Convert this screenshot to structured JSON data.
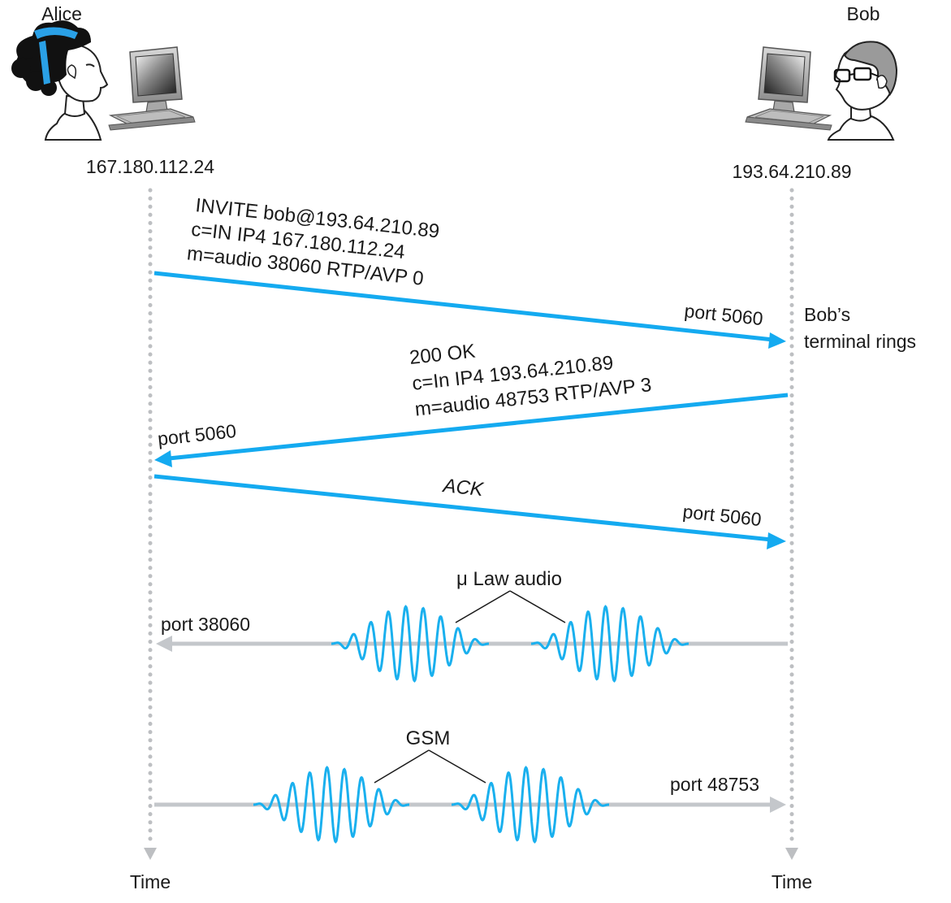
{
  "actors": {
    "alice": {
      "name": "Alice",
      "ip": "167.180.112.24"
    },
    "bob": {
      "name": "Bob",
      "ip": "193.64.210.89"
    }
  },
  "timeline": {
    "alice_label": "Time",
    "bob_label": "Time"
  },
  "messages": {
    "invite": {
      "lines": [
        "INVITE bob@193.64.210.89",
        "c=IN IP4 167.180.112.24",
        "m=audio 38060 RTP/AVP 0"
      ],
      "port": "port 5060"
    },
    "ringing_note": [
      "Bob’s",
      "terminal rings"
    ],
    "ok": {
      "lines": [
        "200 OK",
        "c=In IP4 193.64.210.89",
        "m=audio 48753 RTP/AVP 3"
      ],
      "port": "port 5060"
    },
    "ack": {
      "label": "ACK",
      "port": "port 5060"
    }
  },
  "streams": {
    "to_alice": {
      "label": "μ Law audio",
      "port": "port 38060"
    },
    "to_bob": {
      "label": "GSM",
      "port": "port 48753"
    }
  },
  "colors": {
    "signal_arrow": "#14aaf0",
    "media_line": "#c4c7cb",
    "waveform": "#1ab0ee",
    "timeline": "#bdbfc2",
    "text": "#1a1a1a"
  },
  "icons": {
    "alice_avatar": "alice-avatar-icon",
    "bob_avatar": "bob-avatar-icon",
    "computer": "computer-icon"
  }
}
